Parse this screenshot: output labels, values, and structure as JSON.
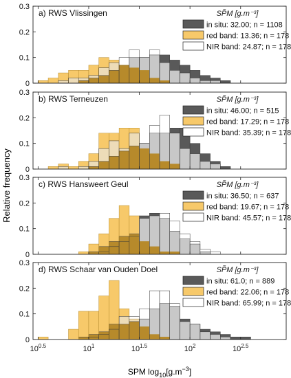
{
  "figure": {
    "ylabel": "Relative frequency",
    "xlabel": "SPM log",
    "xlabel_sub": "10",
    "xlabel_unit": "[g.m",
    "xlabel_unit_sup": "−3",
    "xlabel_unit_end": "]"
  },
  "colors": {
    "insitu": "#595959",
    "red": "#f7c96a",
    "nir": "#ffffff",
    "red_nir_overlap": "#eddcb8",
    "insitu_nir_overlap": "#c8c8c8",
    "insitu_red_overlap": "#b78a2b",
    "edge": "#1a1a1a"
  },
  "chart_data": [
    {
      "type": "bar",
      "panel": "a",
      "title": "a) RWS Vlissingen",
      "legend_title": "SP̃M [g.m⁻³]",
      "xscale": "log10",
      "xlim": [
        0.45,
        2.95
      ],
      "ylim": [
        0,
        0.3
      ],
      "yticks": [
        "0",
        "0.1",
        "0.2",
        "0.3"
      ],
      "xticks": [
        {
          "base": "10",
          "exp": "0.5",
          "v": 0.5
        },
        {
          "base": "10",
          "exp": "1",
          "v": 1
        },
        {
          "base": "10",
          "exp": "1.5",
          "v": 1.5
        },
        {
          "base": "10",
          "exp": "2",
          "v": 2
        },
        {
          "base": "10",
          "exp": "2.5",
          "v": 2.5
        }
      ],
      "bin_edges_log10": [
        0.5,
        0.6,
        0.7,
        0.8,
        0.9,
        1.0,
        1.1,
        1.2,
        1.3,
        1.4,
        1.5,
        1.6,
        1.7,
        1.8,
        1.9,
        2.0,
        2.1,
        2.2,
        2.3,
        2.4
      ],
      "series": [
        {
          "name": "in situ: 32.00; n = 1108",
          "key": "insitu",
          "values": [
            0.0,
            0.0,
            0.0,
            0.0,
            0.01,
            0.02,
            0.03,
            0.05,
            0.07,
            0.1,
            0.1,
            0.11,
            0.11,
            0.09,
            0.07,
            0.05,
            0.03,
            0.02,
            0.01
          ]
        },
        {
          "name": "red band: 13.36; n = 178",
          "key": "red",
          "values": [
            0.01,
            0.02,
            0.04,
            0.05,
            0.05,
            0.07,
            0.1,
            0.09,
            0.07,
            0.06,
            0.05,
            0.02,
            0.01,
            0.0,
            0.0,
            0.0,
            0.0,
            0.0,
            0.0
          ]
        },
        {
          "name": "NIR band: 24.87; n = 178",
          "key": "nir",
          "values": [
            0.0,
            0.0,
            0.01,
            0.02,
            0.02,
            0.03,
            0.06,
            0.08,
            0.1,
            0.13,
            0.1,
            0.13,
            0.08,
            0.05,
            0.04,
            0.02,
            0.01,
            0.01,
            0.0
          ]
        }
      ]
    },
    {
      "type": "bar",
      "panel": "b",
      "title": "b) RWS Terneuzen",
      "legend_title": "SP̃M [g.m⁻³]",
      "xscale": "log10",
      "xlim": [
        0.45,
        2.95
      ],
      "ylim": [
        0,
        0.3
      ],
      "yticks": [
        "0",
        "0.1",
        "0.2",
        "0.3"
      ],
      "xticks": [],
      "bin_edges_log10": [
        0.5,
        0.6,
        0.7,
        0.8,
        0.9,
        1.0,
        1.1,
        1.2,
        1.3,
        1.4,
        1.5,
        1.6,
        1.7,
        1.8,
        1.9,
        2.0,
        2.1,
        2.2,
        2.3,
        2.4
      ],
      "series": [
        {
          "name": "in situ: 46.00; n = 515",
          "key": "insitu",
          "values": [
            0.0,
            0.0,
            0.0,
            0.0,
            0.0,
            0.01,
            0.03,
            0.05,
            0.07,
            0.09,
            0.1,
            0.14,
            0.14,
            0.16,
            0.16,
            0.1,
            0.06,
            0.03,
            0.01
          ]
        },
        {
          "name": "red band: 17.29; n = 178",
          "key": "red",
          "values": [
            0.0,
            0.01,
            0.02,
            0.01,
            0.03,
            0.06,
            0.14,
            0.14,
            0.16,
            0.16,
            0.08,
            0.06,
            0.03,
            0.02,
            0.0,
            0.0,
            0.0,
            0.0,
            0.0
          ]
        },
        {
          "name": "NIR band: 35.39; n = 178",
          "key": "nir",
          "values": [
            0.0,
            0.0,
            0.01,
            0.0,
            0.01,
            0.03,
            0.08,
            0.11,
            0.08,
            0.14,
            0.1,
            0.17,
            0.21,
            0.14,
            0.08,
            0.06,
            0.03,
            0.02,
            0.0
          ]
        }
      ]
    },
    {
      "type": "bar",
      "panel": "c",
      "title": "c) RWS Hansweert Geul",
      "legend_title": "SP̃M [g.m⁻³]",
      "xscale": "log10",
      "xlim": [
        0.45,
        2.95
      ],
      "ylim": [
        0,
        0.3
      ],
      "yticks": [
        "0",
        "0.1",
        "0.2",
        "0.3"
      ],
      "xticks": [],
      "bin_edges_log10": [
        0.5,
        0.6,
        0.7,
        0.8,
        0.9,
        1.0,
        1.1,
        1.2,
        1.3,
        1.4,
        1.5,
        1.6,
        1.7,
        1.8,
        1.9,
        2.0,
        2.1,
        2.2,
        2.3,
        2.4
      ],
      "series": [
        {
          "name": "in situ: 36.50; n = 637",
          "key": "insitu",
          "values": [
            0.0,
            0.0,
            0.0,
            0.0,
            0.0,
            0.01,
            0.03,
            0.05,
            0.07,
            0.08,
            0.15,
            0.16,
            0.14,
            0.09,
            0.06,
            0.04,
            0.01,
            0.0,
            0.0
          ]
        },
        {
          "name": "red band: 19.67; n = 178",
          "key": "red",
          "values": [
            0.0,
            0.0,
            0.0,
            0.0,
            0.01,
            0.04,
            0.08,
            0.14,
            0.19,
            0.15,
            0.05,
            0.03,
            0.01,
            0.01,
            0.0,
            0.0,
            0.0,
            0.0,
            0.0
          ]
        },
        {
          "name": "NIR band: 45.57; n = 178",
          "key": "nir",
          "values": [
            0.0,
            0.0,
            0.0,
            0.0,
            0.0,
            0.0,
            0.01,
            0.03,
            0.05,
            0.07,
            0.14,
            0.15,
            0.16,
            0.13,
            0.08,
            0.05,
            0.02,
            0.01,
            0.0
          ]
        }
      ]
    },
    {
      "type": "bar",
      "panel": "d",
      "title": "d) RWS Schaar van Ouden Doel",
      "legend_title": "SP̃M [g.m⁻³]",
      "xscale": "log10",
      "xlim": [
        0.45,
        2.95
      ],
      "ylim": [
        0,
        0.3
      ],
      "yticks": [
        "0",
        "0.1",
        "0.2",
        "0.3"
      ],
      "xticks": [
        {
          "base": "10",
          "exp": "0.5",
          "v": 0.5
        },
        {
          "base": "10",
          "exp": "1",
          "v": 1
        },
        {
          "base": "10",
          "exp": "1.5",
          "v": 1.5
        },
        {
          "base": "10",
          "exp": "2",
          "v": 2
        },
        {
          "base": "10",
          "exp": "2.5",
          "v": 2.5
        }
      ],
      "bin_edges_log10": [
        0.5,
        0.6,
        0.7,
        0.8,
        0.9,
        1.0,
        1.1,
        1.2,
        1.3,
        1.4,
        1.5,
        1.6,
        1.7,
        1.8,
        1.9,
        2.0,
        2.1,
        2.2,
        2.3,
        2.4,
        2.5,
        2.6,
        2.7
      ],
      "series": [
        {
          "name": "in situ: 61.0; n = 889",
          "key": "insitu",
          "values": [
            0.0,
            0.0,
            0.0,
            0.0,
            0.01,
            0.02,
            0.03,
            0.06,
            0.06,
            0.07,
            0.08,
            0.12,
            0.14,
            0.13,
            0.08,
            0.06,
            0.04,
            0.03,
            0.02,
            0.01,
            0.01,
            0.0
          ]
        },
        {
          "name": "red band: 22.06; n = 178",
          "key": "red",
          "values": [
            0.01,
            0.0,
            0.0,
            0.04,
            0.11,
            0.11,
            0.17,
            0.23,
            0.12,
            0.08,
            0.05,
            0.02,
            0.01,
            0.0,
            0.0,
            0.0,
            0.0,
            0.0,
            0.0,
            0.0,
            0.0,
            0.0
          ]
        },
        {
          "name": "NIR band: 65.99; n = 178",
          "key": "nir",
          "values": [
            0.0,
            0.0,
            0.0,
            0.0,
            0.0,
            0.01,
            0.02,
            0.04,
            0.09,
            0.09,
            0.12,
            0.19,
            0.19,
            0.14,
            0.07,
            0.06,
            0.03,
            0.02,
            0.01,
            0.0,
            0.0,
            0.0
          ]
        }
      ]
    }
  ]
}
